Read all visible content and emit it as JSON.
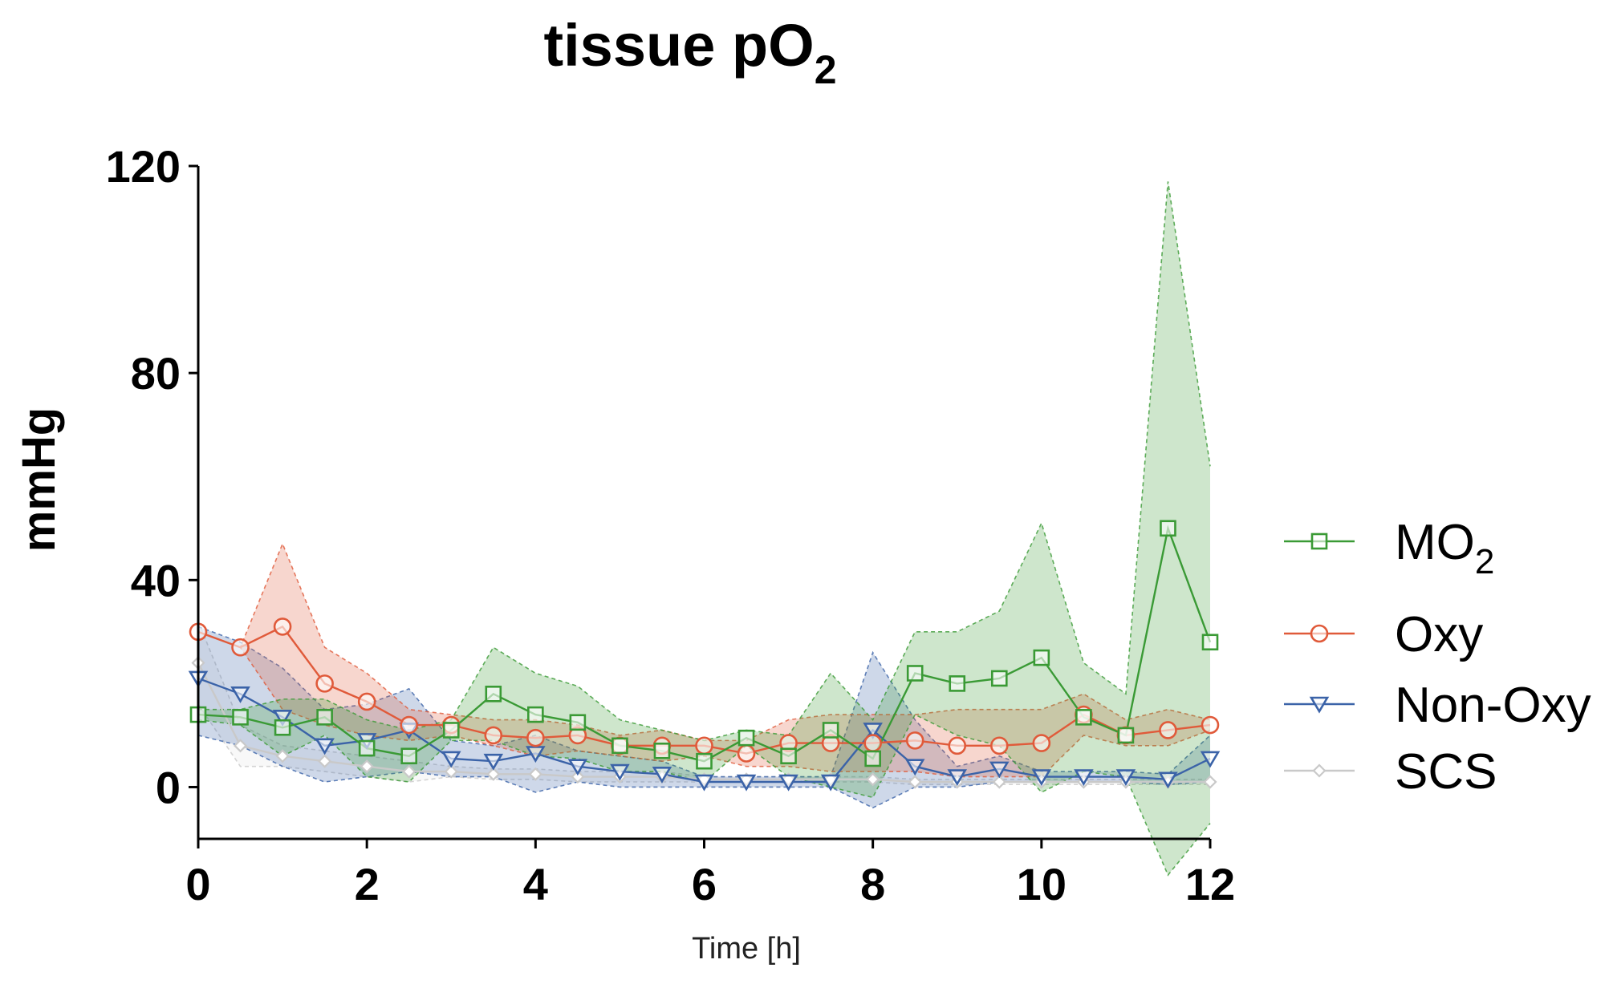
{
  "chart_data": {
    "type": "line",
    "title": "tissue pO",
    "title_subscript": "2",
    "xlabel": "Time [h]",
    "ylabel": "mmHg",
    "xlim": [
      0,
      12
    ],
    "ylim": [
      -10,
      120
    ],
    "xticks": [
      "0",
      "2",
      "4",
      "6",
      "8",
      "10",
      "12"
    ],
    "yticks": [
      "0",
      "40",
      "80",
      "120"
    ],
    "xtick_values": [
      0,
      2,
      4,
      6,
      8,
      10,
      12
    ],
    "ytick_values": [
      0,
      40,
      80,
      120
    ],
    "x": [
      0,
      0.5,
      1,
      1.5,
      2,
      2.5,
      3,
      3.5,
      4,
      4.5,
      5,
      5.5,
      6,
      6.5,
      7,
      7.5,
      8,
      8.5,
      9,
      9.5,
      10,
      10.5,
      11,
      11.5,
      12
    ],
    "series": [
      {
        "name": "MO",
        "subscript": "2",
        "color": "#3a9a35",
        "marker": "square",
        "values": [
          14,
          13.5,
          11.5,
          13.5,
          7.5,
          6,
          11,
          18,
          14,
          12.5,
          8,
          7,
          5,
          9.5,
          6,
          11,
          5.5,
          22,
          20,
          21,
          25,
          13.5,
          10,
          50,
          28
        ],
        "upper": [
          15,
          15,
          17,
          17,
          13,
          11,
          13,
          27,
          22,
          19.5,
          13,
          11,
          9,
          11,
          10,
          22,
          13,
          30,
          30,
          34,
          51,
          24,
          18,
          117,
          62
        ],
        "lower": [
          13,
          12,
          6,
          10,
          2,
          1,
          9,
          9,
          6,
          5.5,
          3,
          3,
          1,
          8,
          2,
          0,
          -2,
          14,
          10,
          8,
          -1,
          3,
          2,
          -17,
          -7
        ]
      },
      {
        "name": "Oxy",
        "subscript": "",
        "color": "#e05a3a",
        "marker": "circle",
        "values": [
          30,
          27,
          31,
          20,
          16.5,
          12,
          12,
          10,
          9.5,
          10,
          8,
          8,
          8,
          6.5,
          8.5,
          8.5,
          8.5,
          9,
          8,
          8,
          8.5,
          14,
          10,
          11,
          12
        ],
        "upper": [
          30,
          27,
          47,
          27,
          22,
          15,
          14,
          13,
          13,
          12,
          10,
          11,
          9,
          9,
          13,
          14,
          14,
          14,
          15,
          15,
          15,
          18,
          13,
          15,
          13
        ],
        "lower": [
          30,
          27,
          15,
          12,
          10,
          9,
          10,
          8,
          6,
          7,
          6,
          5,
          6,
          4,
          4,
          3,
          3,
          3,
          2,
          2,
          2,
          10,
          8,
          8,
          11
        ]
      },
      {
        "name": "Non-Oxy",
        "subscript": "",
        "color": "#3b63a8",
        "marker": "triangle-down",
        "values": [
          21,
          18,
          13.5,
          8,
          9,
          11,
          5.5,
          5,
          6.5,
          4,
          3,
          2.5,
          1,
          1,
          1,
          1,
          11,
          4,
          2,
          3.5,
          2,
          2,
          2,
          1.5,
          5.5
        ],
        "upper": [
          31,
          28,
          23,
          15,
          16,
          19,
          9,
          8,
          10,
          7,
          6,
          5,
          2,
          2,
          2,
          2,
          26,
          13,
          4,
          6,
          3,
          3,
          3,
          2.5,
          10
        ],
        "lower": [
          10,
          8,
          4,
          1,
          2,
          3,
          2,
          2,
          -1,
          1,
          0,
          0,
          0,
          0,
          0,
          0,
          -4,
          0,
          0,
          1,
          1,
          1,
          1,
          0.5,
          1
        ]
      },
      {
        "name": "SCS",
        "subscript": "",
        "color": "#c9c9c9",
        "marker": "diamond",
        "values": [
          24,
          8,
          6,
          5,
          4,
          3,
          3,
          2.5,
          2.5,
          2,
          2,
          2,
          1.5,
          1.5,
          1.5,
          1.5,
          1.5,
          1,
          1,
          1,
          1,
          1,
          1,
          1,
          1
        ],
        "upper": [
          32,
          12,
          8,
          7,
          6,
          5,
          4,
          3.5,
          3.5,
          3,
          3,
          3,
          2,
          2,
          2,
          2,
          2,
          1.5,
          1.5,
          1.5,
          1.5,
          1.5,
          1.5,
          1.5,
          1.5
        ],
        "lower": [
          16,
          4,
          4,
          3,
          2,
          1,
          2,
          1.5,
          1.5,
          1,
          1,
          1,
          1,
          1,
          1,
          1,
          1,
          0.5,
          0.5,
          0.5,
          0.5,
          0.5,
          0.5,
          0.5,
          0.5
        ]
      }
    ],
    "legend_position": "right"
  }
}
